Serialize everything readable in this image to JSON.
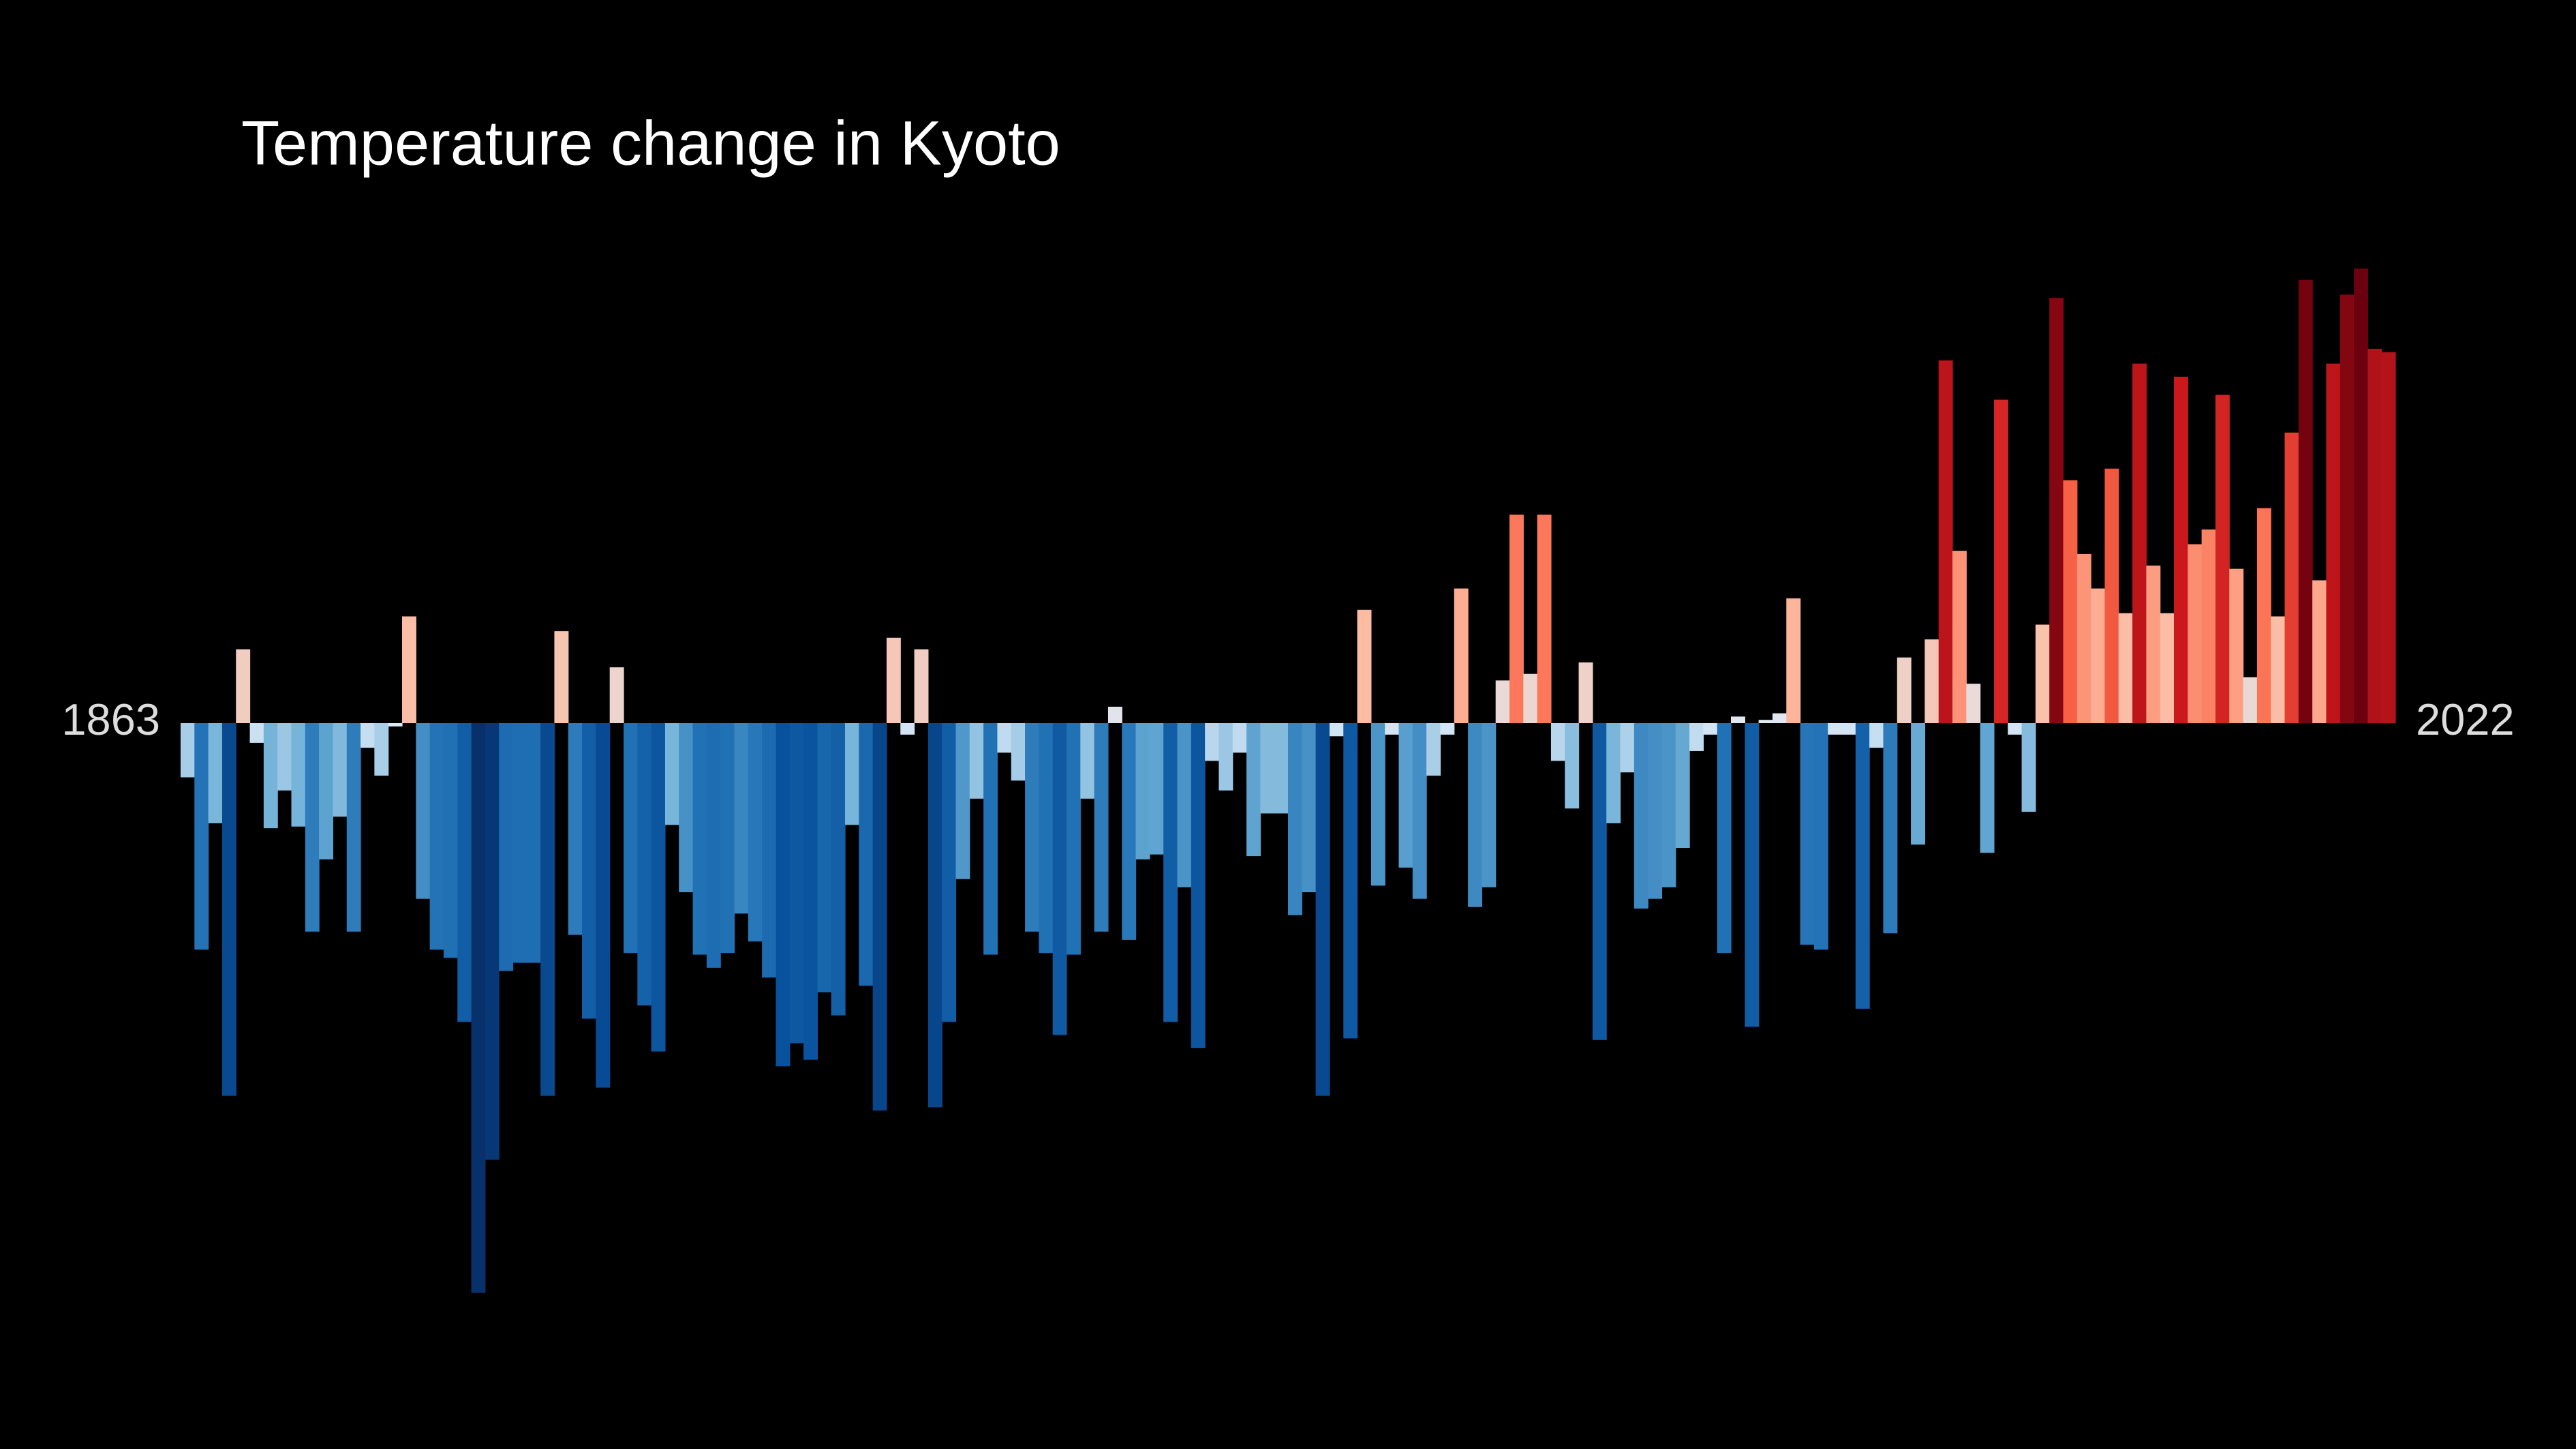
{
  "chart_data": {
    "type": "bar",
    "title": "Temperature change in Kyoto",
    "categories": [
      "1863",
      null,
      null,
      null,
      null,
      null,
      null,
      null,
      null,
      null,
      null,
      null,
      null,
      null,
      null,
      null,
      null,
      null,
      null,
      null,
      null,
      null,
      null,
      null,
      null,
      null,
      null,
      null,
      null,
      null,
      null,
      null,
      null,
      null,
      null,
      null,
      null,
      null,
      null,
      null,
      null,
      null,
      null,
      null,
      null,
      null,
      null,
      null,
      null,
      null,
      null,
      null,
      null,
      null,
      null,
      null,
      null,
      null,
      null,
      null,
      null,
      null,
      null,
      null,
      null,
      null,
      null,
      null,
      null,
      null,
      null,
      null,
      null,
      null,
      null,
      null,
      null,
      null,
      null,
      null,
      null,
      null,
      null,
      null,
      null,
      null,
      null,
      null,
      null,
      null,
      null,
      null,
      null,
      null,
      null,
      null,
      null,
      null,
      null,
      null,
      null,
      null,
      null,
      null,
      null,
      null,
      null,
      null,
      null,
      null,
      null,
      null,
      null,
      null,
      null,
      null,
      null,
      null,
      null,
      null,
      null,
      null,
      null,
      null,
      null,
      null,
      null,
      null,
      null,
      null,
      null,
      null,
      null,
      null,
      null,
      null,
      null,
      null,
      null,
      null,
      null,
      null,
      null,
      null,
      null,
      null,
      null,
      null,
      null,
      null,
      null,
      null,
      null,
      null,
      null,
      null,
      null,
      null,
      null,
      "2022"
    ],
    "values": [
      -0.33,
      -1.38,
      -0.61,
      -2.27,
      0.45,
      -0.12,
      -0.64,
      -0.41,
      -0.63,
      -1.27,
      -0.83,
      -0.57,
      -1.27,
      -0.15,
      -0.32,
      -0.02,
      0.65,
      -1.07,
      -1.38,
      -1.43,
      -1.82,
      -3.47,
      -2.66,
      -1.51,
      -1.46,
      -1.46,
      -2.27,
      0.56,
      -1.29,
      -1.8,
      -2.22,
      0.34,
      -1.4,
      -1.72,
      -2.0,
      -0.62,
      -1.03,
      -1.41,
      -1.49,
      -1.4,
      -1.16,
      -1.33,
      -1.55,
      -2.09,
      -1.95,
      -2.05,
      -1.64,
      -1.78,
      -0.62,
      -1.6,
      -2.36,
      0.52,
      -0.07,
      0.45,
      -2.34,
      -1.82,
      -0.95,
      -0.46,
      -1.41,
      -0.18,
      -0.35,
      -1.27,
      -1.4,
      -1.9,
      -1.41,
      -0.46,
      -1.27,
      0.1,
      -1.32,
      -0.83,
      -0.8,
      -1.82,
      -1.0,
      -1.98,
      -0.23,
      -0.41,
      -0.18,
      -0.81,
      -0.55,
      -0.55,
      -1.17,
      -1.03,
      -2.27,
      -0.08,
      -1.92,
      0.69,
      -0.99,
      -0.07,
      -0.88,
      -1.07,
      -0.32,
      -0.07,
      0.82,
      -1.12,
      -1.0,
      0.26,
      1.27,
      0.3,
      1.27,
      -0.23,
      -0.52,
      0.37,
      -1.93,
      -0.61,
      -0.3,
      -1.13,
      -1.07,
      -1.0,
      -0.76,
      -0.17,
      -0.07,
      -1.4,
      0.04,
      -1.85,
      0.02,
      0.06,
      0.76,
      -1.35,
      -1.38,
      -0.07,
      -0.07,
      -1.74,
      -0.15,
      -1.28,
      0.4,
      -0.74,
      0.51,
      2.21,
      1.05,
      0.24,
      -0.79,
      1.97,
      -0.07,
      -0.54,
      0.6,
      2.59,
      1.48,
      1.03,
      0.82,
      1.55,
      0.67,
      2.19,
      0.96,
      0.67,
      2.11,
      1.09,
      1.18,
      2.0,
      0.94,
      0.28,
      1.31,
      0.65,
      1.77,
      2.7,
      0.87,
      2.19,
      2.61,
      2.77,
      2.28,
      2.26
    ],
    "colormap": [
      "#08306b",
      "#08306b",
      "#08519c",
      "#2171b5",
      "#6baed6",
      "#deebf7",
      "#fcbba1",
      "#fb6a4a",
      "#cb181d",
      "#67000d",
      "#67000d"
    ],
    "ylim": [
      -3.5,
      3.5
    ]
  }
}
